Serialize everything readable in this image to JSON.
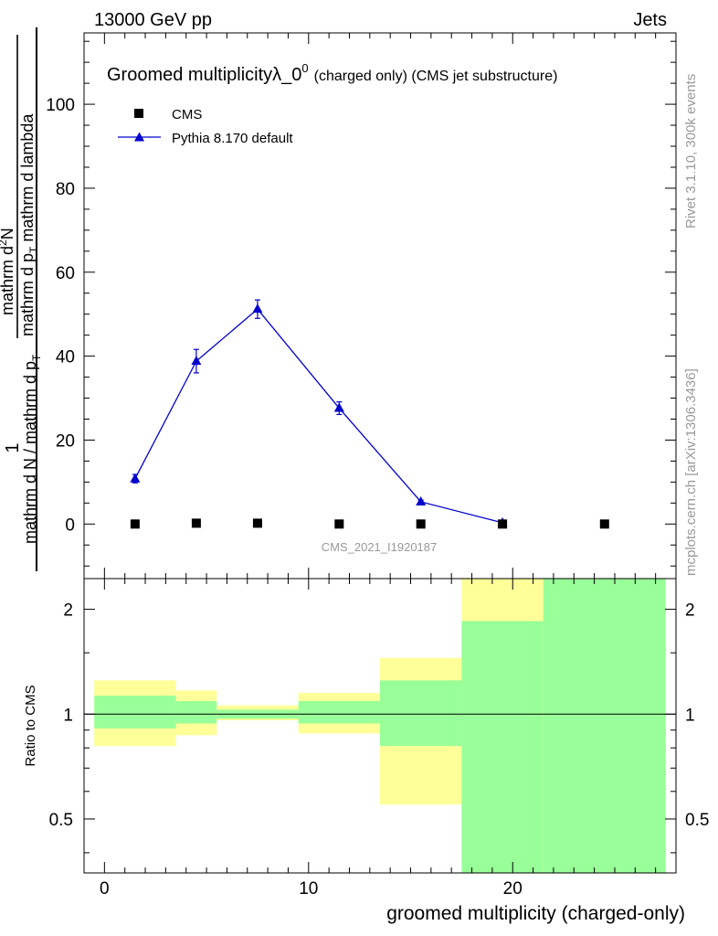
{
  "header": {
    "left": "13000 GeV pp",
    "right": "Jets"
  },
  "side": {
    "rivet": "Rivet 3.1.10,  300k events",
    "mcplots": "mcplots.cern.ch [arXiv:1306.3436]"
  },
  "chart_data": {
    "type": "scatter",
    "title_main": "Groomed multiplicityλ_0",
    "title_sup": "0",
    "title_rest": "(charged only) (CMS jet substructure)",
    "analysis_id": "CMS_2021_I1920187",
    "xlabel": "groomed multiplicity (charged-only)",
    "ylabel_top": {
      "numerator": "mathrm d",
      "numerator_sup": "2",
      "numerator_end": "N",
      "denominator": "mathrm d p",
      "denominator_sub": "T",
      "denominator_end": " mathrm d lambda"
    },
    "ylabel_bottom": {
      "numerator": "1",
      "denominator": "mathrm d N / mathrm d p",
      "denominator_sub": "T"
    },
    "ratio_ylabel": "Ratio to CMS",
    "xlim": [
      -1,
      28
    ],
    "ylim": [
      -13,
      117
    ],
    "ratio_ylim": [
      0.35,
      2.45
    ],
    "xticks": [
      0,
      10,
      20
    ],
    "yticks": [
      0,
      20,
      40,
      60,
      80,
      100
    ],
    "ratio_yticks": [
      0.5,
      1,
      2
    ],
    "ratio_ytick_labels": [
      "0.5",
      "1",
      "2"
    ],
    "legend": [
      {
        "name": "CMS",
        "marker": "square",
        "color": "#000000"
      },
      {
        "name": "Pythia 8.170 default",
        "marker": "triangle",
        "color": "#0000cc"
      }
    ],
    "series": [
      {
        "name": "CMS",
        "x": [
          1.5,
          4.5,
          7.5,
          11.5,
          15.5,
          19.5,
          24.5
        ],
        "y": [
          0,
          0.2,
          0.2,
          0,
          0,
          0,
          0
        ]
      },
      {
        "name": "Pythia 8.170 default",
        "x": [
          1.5,
          4.5,
          7.5,
          11.5,
          15.5,
          19.5
        ],
        "y": [
          10.8,
          38.8,
          51.2,
          27.6,
          5.3,
          0.3
        ],
        "yerr": [
          1.0,
          2.8,
          2.2,
          1.5,
          0.4,
          0.2
        ]
      }
    ],
    "ratio_bands": [
      {
        "x0": -0.5,
        "x1": 3.5,
        "yellow": [
          0.81,
          1.25
        ],
        "green": [
          0.91,
          1.13
        ]
      },
      {
        "x0": 3.5,
        "x1": 5.5,
        "yellow": [
          0.87,
          1.17
        ],
        "green": [
          0.94,
          1.09
        ]
      },
      {
        "x0": 5.5,
        "x1": 9.5,
        "yellow": [
          0.96,
          1.06
        ],
        "green": [
          0.97,
          1.03
        ]
      },
      {
        "x0": 9.5,
        "x1": 13.5,
        "yellow": [
          0.88,
          1.15
        ],
        "green": [
          0.94,
          1.09
        ]
      },
      {
        "x0": 13.5,
        "x1": 17.5,
        "yellow": [
          0.55,
          1.45
        ],
        "green": [
          0.81,
          1.25
        ]
      },
      {
        "x0": 17.5,
        "x1": 21.5,
        "yellow": [
          0.35,
          2.45
        ],
        "green": [
          0.35,
          1.85
        ]
      },
      {
        "x0": 21.5,
        "x1": 27.5,
        "yellow": [
          0.35,
          2.45
        ],
        "green": [
          0.35,
          2.45
        ]
      }
    ],
    "colors": {
      "cms": "#000000",
      "pythia": "#0000cc",
      "band_yellow": "#ffff99",
      "band_green": "#99ff99",
      "watermark": "#999999"
    }
  }
}
